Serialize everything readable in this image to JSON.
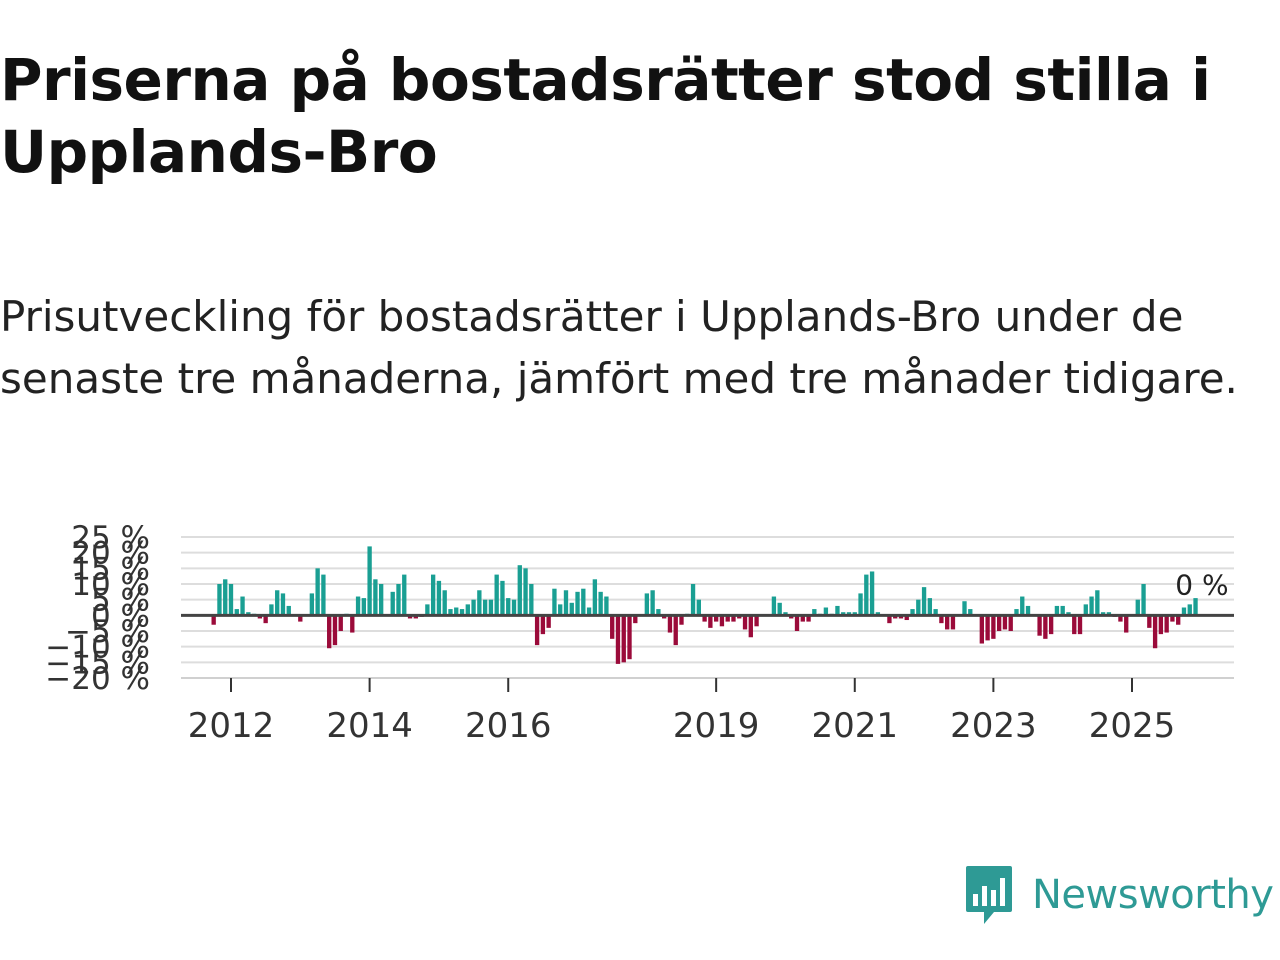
{
  "title": "Priserna på bostadsrätter stod stilla i Upplands-Bro",
  "subtitle": "Prisutveckling för bostadsrätter i Upplands-Bro under de senaste tre månaderna, jämfört med tre månader tidigare.",
  "brand": {
    "name": "Newsworthy"
  },
  "colors": {
    "positive": "#1a9f93",
    "negative": "#9b0b3a",
    "grid": "#dddddd",
    "zero": "#444444"
  },
  "chart_data": {
    "type": "bar",
    "title": "Priserna på bostadsrätter stod stilla i Upplands-Bro",
    "xlabel": "",
    "ylabel": "",
    "ylim": [
      -20,
      25
    ],
    "yticks": [
      -20,
      -15,
      -10,
      -5,
      0,
      5,
      10,
      15,
      20,
      25
    ],
    "ytick_labels": [
      "−20 %",
      "−15 %",
      "−10 %",
      "−5 %",
      "0 %",
      "5 %",
      "10 %",
      "15 %",
      "20 %",
      "25 %"
    ],
    "x_start": 2011.75,
    "x_step": 0.0833333,
    "xticks": [
      2012,
      2014,
      2016,
      2019,
      2021,
      2023,
      2025
    ],
    "xtick_labels": [
      "2012",
      "2014",
      "2016",
      "2019",
      "2021",
      "2023",
      "2025"
    ],
    "last_value_label": "0 %",
    "values": [
      -3,
      10,
      11.5,
      10,
      2,
      6,
      1,
      0.5,
      -1,
      -2.5,
      3.5,
      8,
      7,
      3,
      0,
      -2,
      0,
      7,
      15,
      13,
      -10.5,
      -9.5,
      -5,
      0.5,
      -5.5,
      6,
      5.5,
      22,
      11.5,
      10,
      0,
      7.5,
      10,
      13,
      -1,
      -1,
      -0.5,
      3.5,
      13,
      11,
      8,
      2,
      2.5,
      2,
      3.5,
      5,
      8,
      5,
      5,
      13,
      11,
      5.5,
      5,
      16,
      15,
      10,
      -9.5,
      -6,
      -4,
      8.5,
      3.5,
      8,
      4,
      7.5,
      8.5,
      2.5,
      11.5,
      7.5,
      6,
      -7.5,
      -15.5,
      -15,
      -14,
      -2.5,
      0,
      7,
      8,
      2,
      -1,
      -5.5,
      -9.5,
      -3,
      0.5,
      10,
      5,
      -2,
      -4,
      -2,
      -3.5,
      -2,
      -2,
      -1,
      -4.5,
      -7,
      -3.5,
      0,
      0,
      6,
      4,
      1,
      -1,
      -5,
      -2,
      -2,
      2,
      0.5,
      2.5,
      0.5,
      3,
      1,
      1,
      1,
      7,
      13,
      14,
      1,
      0,
      -2.5,
      -1,
      -1,
      -1.5,
      2,
      5,
      9,
      5.5,
      2,
      -2.5,
      -4.5,
      -4.5,
      0,
      4.5,
      2,
      0,
      -9,
      -8,
      -7.5,
      -5,
      -4.5,
      -5,
      2,
      6,
      3,
      0,
      -6.5,
      -7.5,
      -6,
      3,
      3,
      1,
      -6,
      -6,
      3.5,
      6,
      8,
      1,
      1,
      -0.5,
      -2,
      -5.5,
      0,
      5,
      10,
      -4,
      -10.5,
      -6,
      -5.5,
      -2,
      -3,
      2.5,
      3.5,
      5.5,
      0
    ]
  }
}
